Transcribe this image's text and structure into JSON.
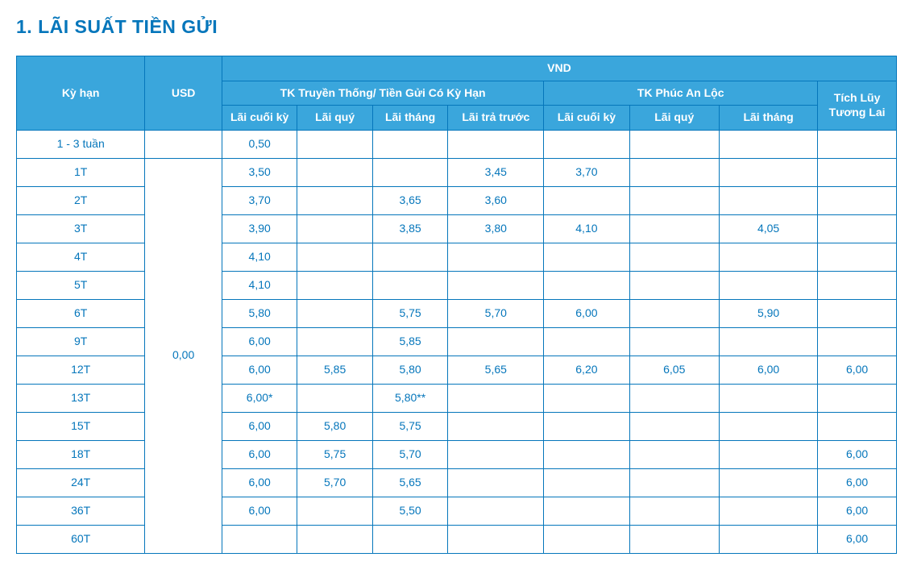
{
  "colors": {
    "primary": "#0576bb",
    "header_bg": "#3aa6dc",
    "header_text": "#ffffff",
    "cell_text": "#0576bb",
    "page_bg": "#ffffff"
  },
  "title": "1. LÃI SUẤT TIỀN GỬI",
  "headers": {
    "kyhan": "Kỳ hạn",
    "usd": "USD",
    "vnd": "VND",
    "truyenthong": "TK Truyền Thống/ Tiền Gửi Có Kỳ Hạn",
    "phucanloc": "TK Phúc An Lộc",
    "tichluy": "Tích Lũy Tương Lai",
    "lai_cuoiky": "Lãi cuối kỳ",
    "lai_quy": "Lãi quý",
    "lai_thang": "Lãi tháng",
    "lai_tratruoc": "Lãi trả trước"
  },
  "usd_merged_value": "0,00",
  "rows": [
    {
      "kyhan": "1 - 3 tuần",
      "tt_cuoi": "0,50",
      "tt_quy": "",
      "tt_thang": "",
      "tt_pre": "",
      "pal_cuoi": "",
      "pal_quy": "",
      "pal_thang": "",
      "tl": ""
    },
    {
      "kyhan": "1T",
      "tt_cuoi": "3,50",
      "tt_quy": "",
      "tt_thang": "",
      "tt_pre": "3,45",
      "pal_cuoi": "3,70",
      "pal_quy": "",
      "pal_thang": "",
      "tl": ""
    },
    {
      "kyhan": "2T",
      "tt_cuoi": "3,70",
      "tt_quy": "",
      "tt_thang": "3,65",
      "tt_pre": "3,60",
      "pal_cuoi": "",
      "pal_quy": "",
      "pal_thang": "",
      "tl": ""
    },
    {
      "kyhan": "3T",
      "tt_cuoi": "3,90",
      "tt_quy": "",
      "tt_thang": "3,85",
      "tt_pre": "3,80",
      "pal_cuoi": "4,10",
      "pal_quy": "",
      "pal_thang": "4,05",
      "tl": ""
    },
    {
      "kyhan": "4T",
      "tt_cuoi": "4,10",
      "tt_quy": "",
      "tt_thang": "",
      "tt_pre": "",
      "pal_cuoi": "",
      "pal_quy": "",
      "pal_thang": "",
      "tl": ""
    },
    {
      "kyhan": "5T",
      "tt_cuoi": "4,10",
      "tt_quy": "",
      "tt_thang": "",
      "tt_pre": "",
      "pal_cuoi": "",
      "pal_quy": "",
      "pal_thang": "",
      "tl": ""
    },
    {
      "kyhan": "6T",
      "tt_cuoi": "5,80",
      "tt_quy": "",
      "tt_thang": "5,75",
      "tt_pre": "5,70",
      "pal_cuoi": "6,00",
      "pal_quy": "",
      "pal_thang": "5,90",
      "tl": ""
    },
    {
      "kyhan": "9T",
      "tt_cuoi": "6,00",
      "tt_quy": "",
      "tt_thang": "5,85",
      "tt_pre": "",
      "pal_cuoi": "",
      "pal_quy": "",
      "pal_thang": "",
      "tl": ""
    },
    {
      "kyhan": "12T",
      "tt_cuoi": "6,00",
      "tt_quy": "5,85",
      "tt_thang": "5,80",
      "tt_pre": "5,65",
      "pal_cuoi": "6,20",
      "pal_quy": "6,05",
      "pal_thang": "6,00",
      "tl": "6,00"
    },
    {
      "kyhan": "13T",
      "tt_cuoi": "6,00*",
      "tt_quy": "",
      "tt_thang": "5,80**",
      "tt_pre": "",
      "pal_cuoi": "",
      "pal_quy": "",
      "pal_thang": "",
      "tl": ""
    },
    {
      "kyhan": "15T",
      "tt_cuoi": "6,00",
      "tt_quy": "5,80",
      "tt_thang": "5,75",
      "tt_pre": "",
      "pal_cuoi": "",
      "pal_quy": "",
      "pal_thang": "",
      "tl": ""
    },
    {
      "kyhan": "18T",
      "tt_cuoi": "6,00",
      "tt_quy": "5,75",
      "tt_thang": "5,70",
      "tt_pre": "",
      "pal_cuoi": "",
      "pal_quy": "",
      "pal_thang": "",
      "tl": "6,00"
    },
    {
      "kyhan": "24T",
      "tt_cuoi": "6,00",
      "tt_quy": "5,70",
      "tt_thang": "5,65",
      "tt_pre": "",
      "pal_cuoi": "",
      "pal_quy": "",
      "pal_thang": "",
      "tl": "6,00"
    },
    {
      "kyhan": "36T",
      "tt_cuoi": "6,00",
      "tt_quy": "",
      "tt_thang": "5,50",
      "tt_pre": "",
      "pal_cuoi": "",
      "pal_quy": "",
      "pal_thang": "",
      "tl": "6,00"
    },
    {
      "kyhan": "60T",
      "tt_cuoi": "",
      "tt_quy": "",
      "tt_thang": "",
      "tt_pre": "",
      "pal_cuoi": "",
      "pal_quy": "",
      "pal_thang": "",
      "tl": "6,00"
    }
  ]
}
